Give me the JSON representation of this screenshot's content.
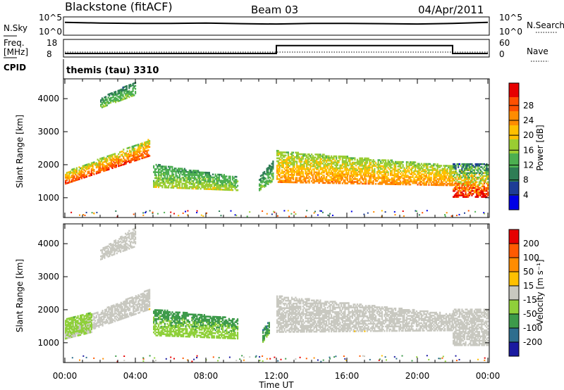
{
  "header": {
    "station": "Blackstone (fitACF)",
    "beam": "Beam 03",
    "date": "04/Apr/2011"
  },
  "sky_panel": {
    "left_label": "N.Sky",
    "right_label": "N.Search",
    "left_ticks": [
      "10^5",
      "10^0"
    ],
    "right_ticks": [
      "10^5",
      "10^0"
    ]
  },
  "freq_panel": {
    "left_label_line1": "Freq.",
    "left_label_line2": "[MHz]",
    "right_label": "Nave",
    "left_ticks": [
      "18",
      "8"
    ],
    "right_ticks": [
      "60",
      "0"
    ]
  },
  "cpid": {
    "label": "CPID",
    "value": "themis (tau) 3310"
  },
  "power_panel": {
    "ylabel": "Slant Range [km]",
    "yticks": [
      "1000",
      "2000",
      "3000",
      "4000"
    ],
    "colorbar_label": "Power [dB]",
    "colorbar_ticks": [
      "4",
      "8",
      "12",
      "16",
      "20",
      "24",
      "28"
    ],
    "colors": [
      "#0000e6",
      "#1e3c96",
      "#2e7d55",
      "#4caf50",
      "#9acd32",
      "#ffc000",
      "#ff8c00",
      "#ff5000",
      "#e60000"
    ]
  },
  "velocity_panel": {
    "ylabel": "Slant Range [km]",
    "yticks": [
      "1000",
      "2000",
      "3000",
      "4000"
    ],
    "colorbar_label": "Velocity [m s⁻¹]",
    "colorbar_ticks": [
      "200",
      "100",
      "50",
      "15",
      "-15",
      "-50",
      "-100",
      "-200"
    ],
    "colors": [
      "#1a1aa0",
      "#2e6e8e",
      "#3d9a4a",
      "#8fd03a",
      "#c8c8c0",
      "#ffc000",
      "#ff8c00",
      "#ff5a00",
      "#e60000"
    ],
    "ground_scatter_color": "#c8c8c0"
  },
  "xaxis": {
    "label": "Time UT",
    "ticks": [
      "00:00",
      "04:00",
      "08:00",
      "12:00",
      "16:00",
      "20:00",
      "00:00"
    ]
  },
  "chart_data": [
    {
      "type": "line",
      "title": "N.Sky",
      "x_range_hours": [
        0,
        24
      ],
      "series": [
        {
          "name": "N.Sky",
          "x": [
            0,
            2,
            4,
            6,
            8,
            10,
            12,
            14,
            16,
            18,
            20,
            22,
            24
          ],
          "values": [
            3.8,
            3.6,
            3.5,
            3.5,
            3.6,
            3.4,
            3.3,
            3.5,
            3.5,
            3.4,
            3.3,
            3.5,
            3.8
          ]
        }
      ]
    },
    {
      "type": "line",
      "title": "Freq.",
      "ylim": [
        8,
        18
      ],
      "x_range_hours": [
        0,
        24
      ],
      "series": [
        {
          "name": "Freq.",
          "x": [
            0,
            12,
            12,
            22,
            22,
            24
          ],
          "values": [
            10,
            10,
            14.5,
            14.5,
            10,
            10
          ]
        }
      ]
    },
    {
      "type": "heatmap",
      "title": "Power [dB]",
      "xlabel": "Time UT",
      "ylabel": "Slant Range [km]",
      "xlim_hours": [
        0,
        24
      ],
      "ylim": [
        400,
        4600
      ],
      "clim": [
        0,
        30
      ],
      "bands": [
        {
          "start": 0.0,
          "end": 4.8,
          "r0": [
            1400,
            2250
          ],
          "r1": [
            1750,
            2750
          ],
          "db": [
            14,
            26
          ]
        },
        {
          "start": 2.0,
          "end": 4.0,
          "r0": [
            3700,
            4100
          ],
          "r1": [
            4000,
            4500
          ],
          "db": [
            8,
            14
          ]
        },
        {
          "start": 5.0,
          "end": 9.8,
          "r0": [
            1300,
            1200
          ],
          "r1": [
            2000,
            1600
          ],
          "db": [
            10,
            16
          ]
        },
        {
          "start": 11.0,
          "end": 11.8,
          "r0": [
            1200,
            1500
          ],
          "r1": [
            1600,
            2100
          ],
          "db": [
            8,
            14
          ]
        },
        {
          "start": 12.0,
          "end": 22.0,
          "r0": [
            1450,
            1350
          ],
          "r1": [
            2400,
            1950
          ],
          "db": [
            14,
            22
          ]
        },
        {
          "start": 22.0,
          "end": 24.0,
          "r0": [
            1000,
            1000
          ],
          "r1": [
            2000,
            2000
          ],
          "db": [
            8,
            28
          ]
        }
      ]
    },
    {
      "type": "heatmap",
      "title": "Velocity [m s⁻¹]",
      "xlabel": "Time UT",
      "ylabel": "Slant Range [km]",
      "xlim_hours": [
        0,
        24
      ],
      "ylim": [
        400,
        4600
      ],
      "clim": [
        -200,
        200
      ],
      "bands": [
        {
          "start": 0.0,
          "end": 4.8,
          "r0": [
            1100,
            2000
          ],
          "r1": [
            1500,
            2600
          ],
          "vel": [
            -15,
            15
          ]
        },
        {
          "start": 0.0,
          "end": 1.5,
          "r0": [
            1100,
            1300
          ],
          "r1": [
            1700,
            1900
          ],
          "vel": [
            -60,
            -20
          ]
        },
        {
          "start": 2.0,
          "end": 4.0,
          "r0": [
            3500,
            3900
          ],
          "r1": [
            3800,
            4500
          ],
          "vel": [
            -15,
            15
          ]
        },
        {
          "start": 5.0,
          "end": 9.8,
          "r0": [
            1200,
            1100
          ],
          "r1": [
            2000,
            1700
          ],
          "vel": [
            -90,
            -40
          ]
        },
        {
          "start": 11.2,
          "end": 11.6,
          "r0": [
            1000,
            1300
          ],
          "r1": [
            1400,
            1700
          ],
          "vel": [
            -120,
            -60
          ]
        },
        {
          "start": 12.0,
          "end": 22.0,
          "r0": [
            1300,
            1350
          ],
          "r1": [
            2400,
            1850
          ],
          "vel": [
            -15,
            15
          ]
        },
        {
          "start": 22.0,
          "end": 24.0,
          "r0": [
            900,
            900
          ],
          "r1": [
            2000,
            2000
          ],
          "vel": [
            -15,
            15
          ]
        }
      ]
    }
  ]
}
